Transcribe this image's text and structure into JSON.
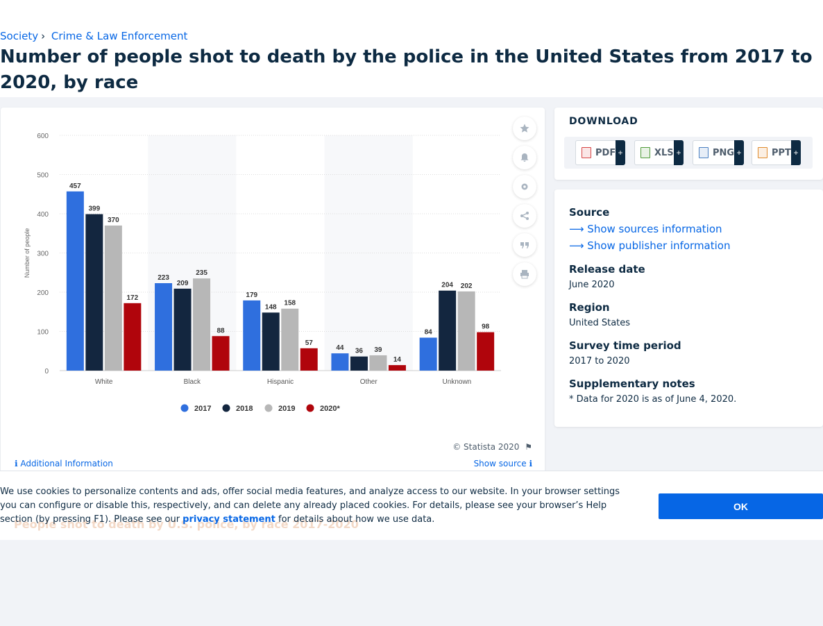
{
  "breadcrumb": {
    "item1": "Society",
    "item2": "Crime & Law Enforcement"
  },
  "title": "Number of people shot to death by the police in the United States from 2017 to 2020, by race",
  "chart_data": {
    "type": "bar",
    "title": "",
    "xlabel": "",
    "ylabel": "Number of people",
    "ylim": [
      0,
      600
    ],
    "yticks": [
      "0",
      "100",
      "200",
      "300",
      "400",
      "500",
      "600"
    ],
    "categories": [
      "White",
      "Black",
      "Hispanic",
      "Other",
      "Unknown"
    ],
    "series": [
      {
        "name": "2017",
        "color": "#2f6fde",
        "values": [
          457,
          223,
          179,
          44,
          84
        ]
      },
      {
        "name": "2018",
        "color": "#13263f",
        "values": [
          399,
          209,
          148,
          36,
          204
        ]
      },
      {
        "name": "2019",
        "color": "#b7b7b7",
        "values": [
          370,
          235,
          158,
          39,
          202
        ]
      },
      {
        "name": "2020*",
        "color": "#b0050c",
        "values": [
          172,
          88,
          57,
          14,
          98
        ]
      }
    ],
    "grid": true,
    "legend": "bottom"
  },
  "chart_footer": {
    "copyright": "© Statista 2020",
    "additional_info": "Additional Information",
    "show_source": "Show source"
  },
  "tool_icons": [
    "star-icon",
    "bell-icon",
    "gear-icon",
    "share-icon",
    "quote-icon",
    "print-icon"
  ],
  "download": {
    "heading": "DOWNLOAD",
    "buttons": [
      {
        "label": "PDF",
        "color": "#d64545"
      },
      {
        "label": "XLS",
        "color": "#4f9b3a"
      },
      {
        "label": "PNG",
        "color": "#4a7fc1"
      },
      {
        "label": "PPT",
        "color": "#e08a2c"
      }
    ],
    "plus": "+"
  },
  "info": {
    "source_heading": "Source",
    "show_sources": "Show sources information",
    "show_publisher": "Show publisher information",
    "release_heading": "Release date",
    "release_value": "June 2020",
    "region_heading": "Region",
    "region_value": "United States",
    "survey_heading": "Survey time period",
    "survey_value": "2017 to 2020",
    "notes_heading": "Supplementary notes",
    "notes_value": "* Data for 2020 is as of June 4, 2020."
  },
  "cookie": {
    "text_before": "We use cookies to personalize contents and ads, offer social media features, and analyze access to our website. In your browser settings you can configure or disable this, respectively, and can delete any already placed cookies. For details, please see your browser’s Help section (by pressing F1). Please see our ",
    "link": "privacy statement",
    "text_after": " for details about how we use data.",
    "ok": "OK",
    "ghost_title": "People shot to death by U.S. police, by race 2017-2020"
  }
}
